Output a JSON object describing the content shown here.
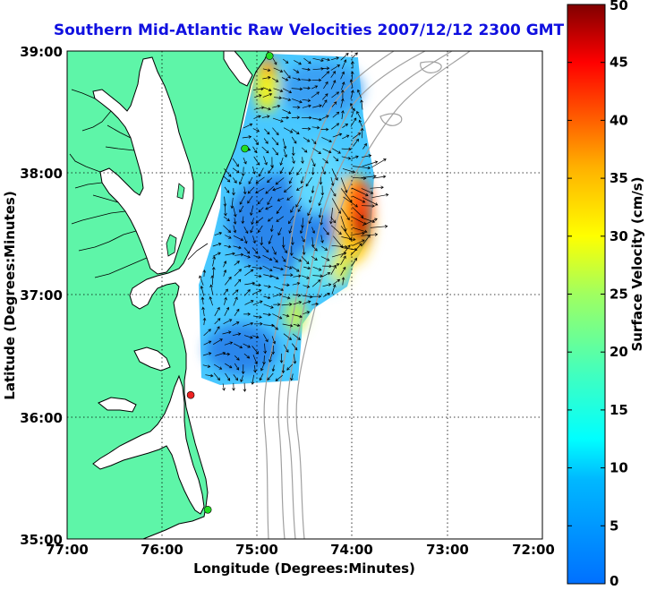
{
  "title": "Southern Mid-Atlantic Raw Velocities 2007/12/12 2300 GMT",
  "x_axis": {
    "label": "Longitude (Degrees:Minutes)",
    "ticks": [
      "77:00",
      "76:00",
      "75:00",
      "74:00",
      "73:00",
      "72:00"
    ],
    "range": [
      -77,
      -72
    ]
  },
  "y_axis": {
    "label": "Latitude (Degrees:Minutes)",
    "ticks": [
      "39:00",
      "38:00",
      "37:00",
      "36:00",
      "35:00"
    ],
    "range": [
      35,
      39
    ]
  },
  "colorbar": {
    "label": "Surface Velocity (cm/s)",
    "ticks": [
      "50",
      "45",
      "40",
      "35",
      "30",
      "25",
      "20",
      "15",
      "10",
      "5",
      "0"
    ],
    "range": [
      0,
      50
    ],
    "colormap": "jet"
  },
  "colors": {
    "land": "#5ef5a8",
    "coastline": "#000000",
    "bathymetry": "#a0a0a0",
    "grid": "#000000",
    "station_active": "#22dd22",
    "station_offline": "#ee2222"
  },
  "stations": [
    {
      "status": "active",
      "lon": -74.87,
      "lat": 38.96
    },
    {
      "status": "active",
      "lon": -75.13,
      "lat": 38.2
    },
    {
      "status": "offline",
      "lon": -75.7,
      "lat": 36.18
    },
    {
      "status": "active",
      "lon": -75.52,
      "lat": 35.24
    }
  ],
  "grid": true,
  "vectors": true
}
